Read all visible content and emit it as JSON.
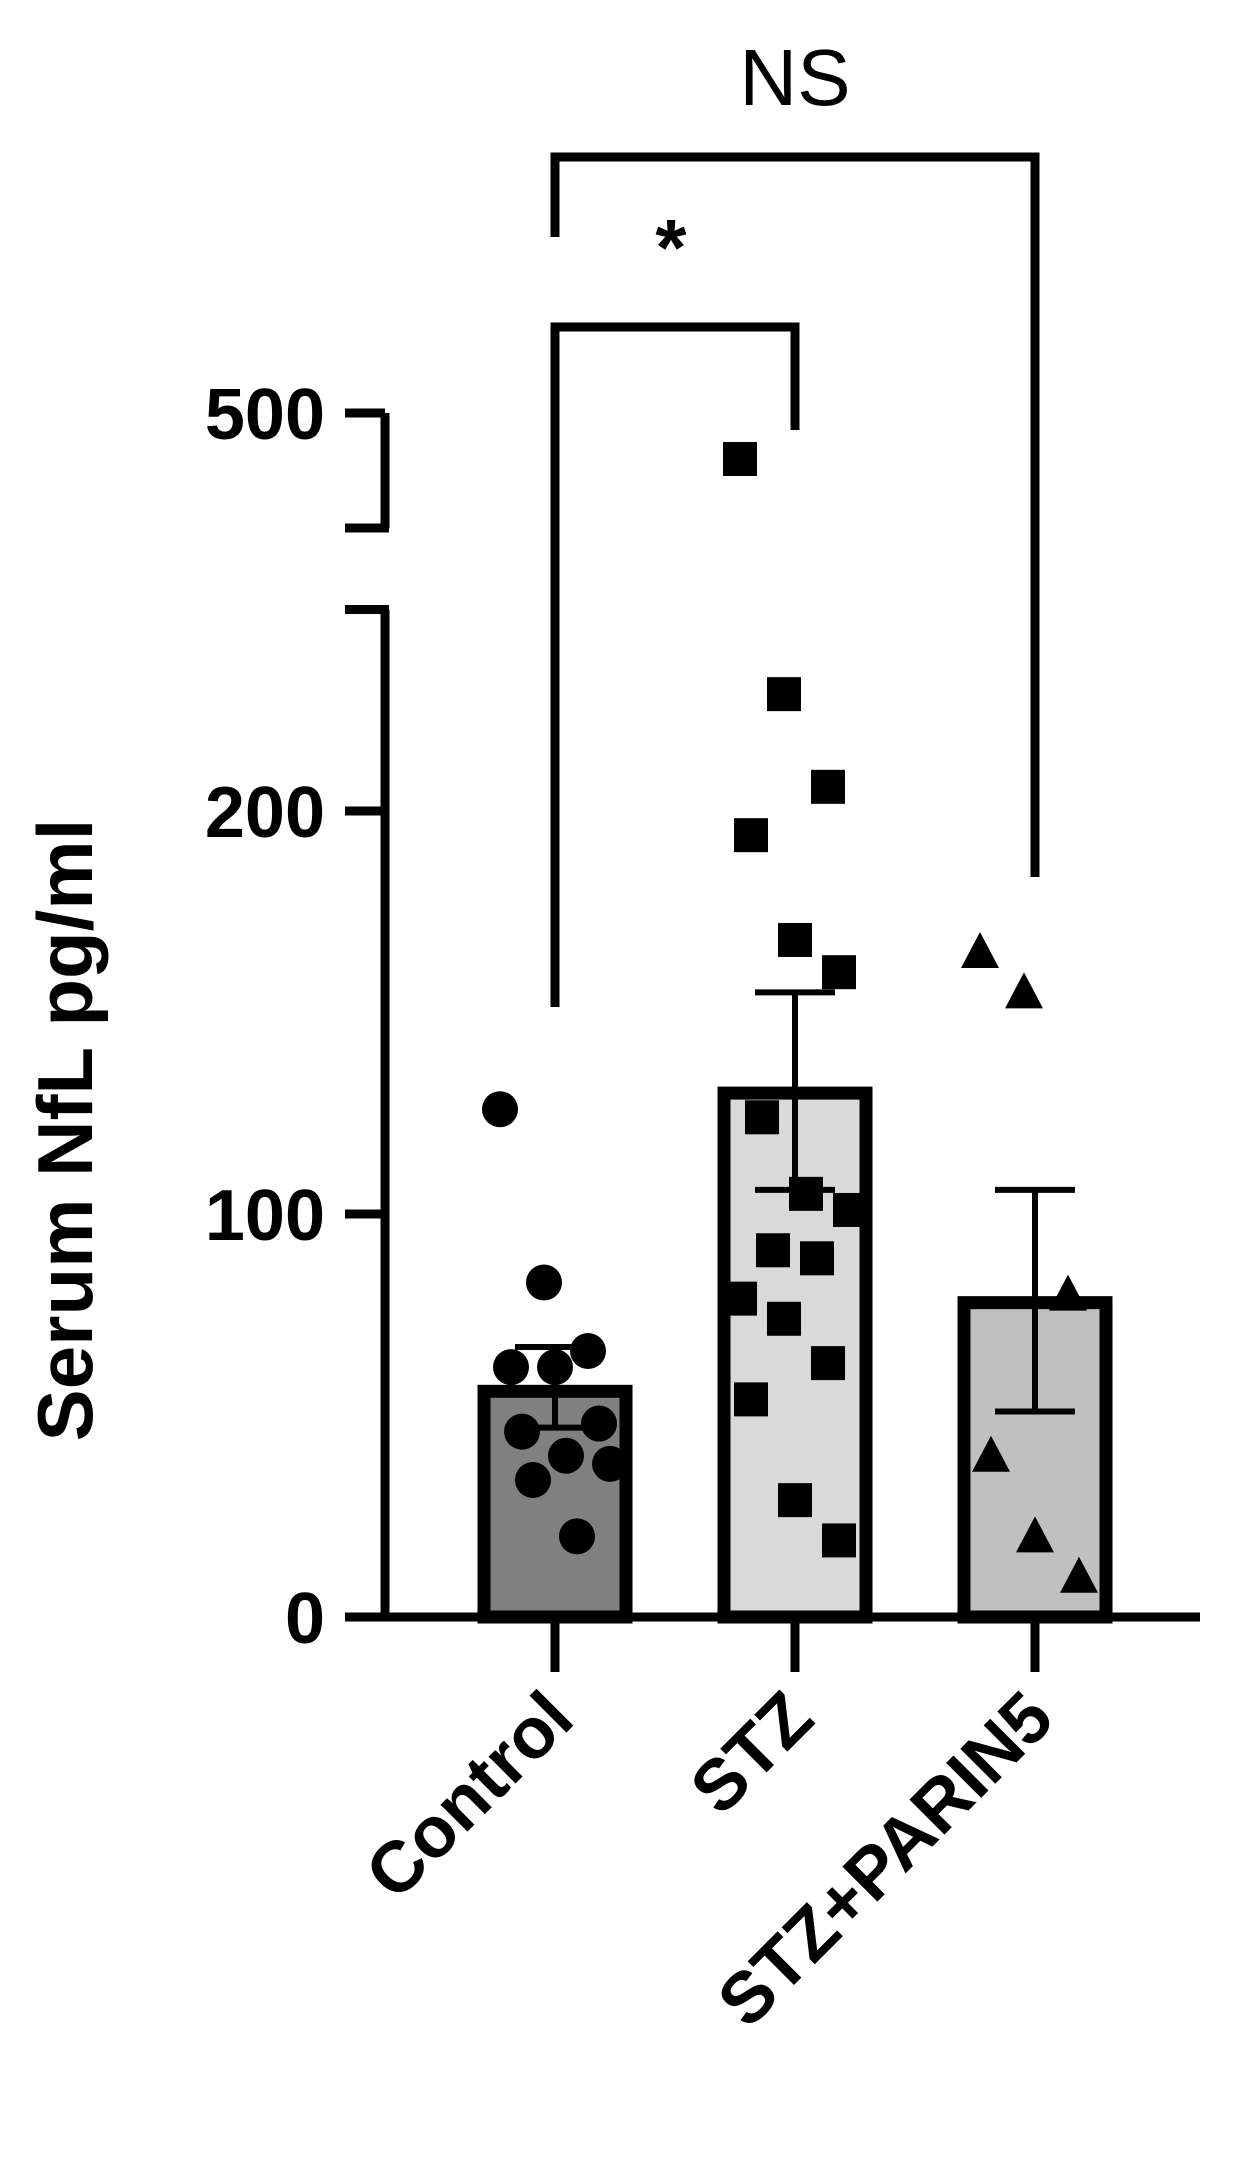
{
  "chart_data": {
    "type": "bar",
    "title": "",
    "xlabel": "",
    "ylabel": "Serum NfL pg/ml",
    "ylim": [
      0,
      500
    ],
    "axis_break": [
      250,
      450
    ],
    "yticks": [
      "0",
      "100",
      "200",
      "500"
    ],
    "yticks_values": [
      0,
      100,
      200,
      500
    ],
    "categories": [
      "Control",
      "STZ",
      "STZ+PARIN5"
    ],
    "colors": [
      "#808080",
      "#d9d9d9",
      "#c0c0c0"
    ],
    "means": [
      56,
      130,
      78
    ],
    "error_upper": [
      67,
      155,
      106
    ],
    "error_lower": [
      47,
      106,
      51
    ],
    "points": [
      {
        "category": "Control",
        "marker": "circle",
        "values": [
          126,
          83,
          66,
          62,
          62,
          48,
          46,
          40,
          38,
          34,
          20
        ]
      },
      {
        "category": "STZ",
        "marker": "square",
        "values": [
          480,
          229,
          206,
          194,
          168,
          160,
          124,
          105,
          101,
          91,
          89,
          79,
          74,
          63,
          54,
          29,
          19
        ]
      },
      {
        "category": "STZ+PARIN5",
        "marker": "triangle",
        "values": [
          165,
          155,
          80,
          40,
          20,
          10
        ]
      }
    ],
    "significance": [
      {
        "groups": [
          "Control",
          "STZ"
        ],
        "label": "*"
      },
      {
        "groups": [
          "Control",
          "STZ+PARIN5"
        ],
        "label": "NS"
      }
    ]
  }
}
